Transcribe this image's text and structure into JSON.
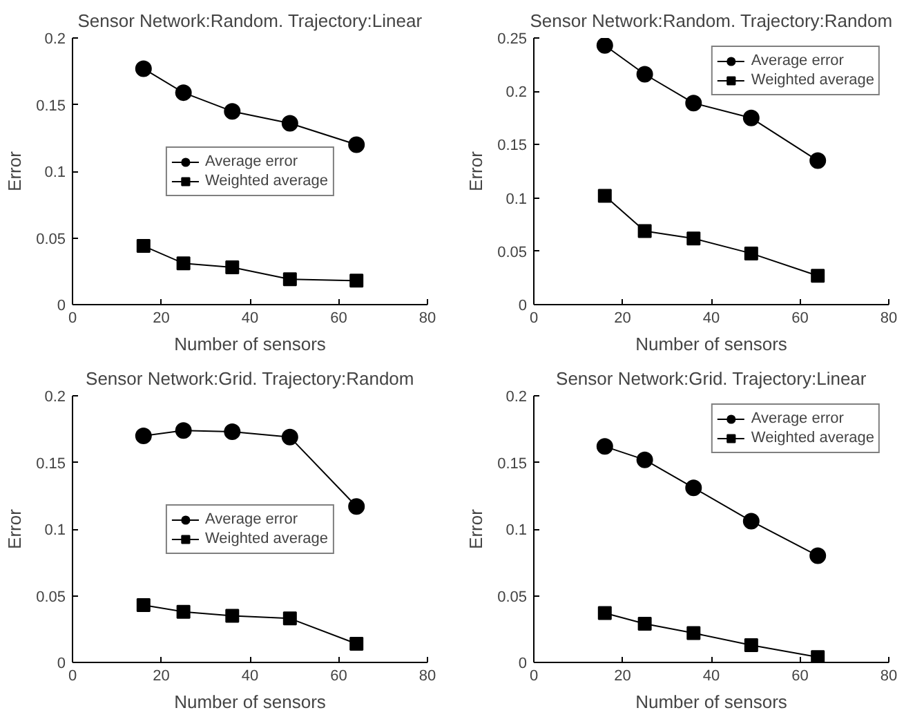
{
  "chart_data": [
    {
      "type": "line",
      "title": "Sensor Network:Random. Trajectory:Linear",
      "xlabel": "Number of sensors",
      "ylabel": "Error",
      "x": [
        16,
        25,
        36,
        49,
        64
      ],
      "xlim": [
        0,
        80
      ],
      "xticks": [
        0,
        20,
        40,
        60,
        80
      ],
      "ylim": [
        0,
        0.2
      ],
      "yticks": [
        0,
        0.05,
        0.1,
        0.15,
        0.2
      ],
      "legend": "center",
      "grid": false,
      "series": [
        {
          "name": "Average error",
          "color": "#000000",
          "marker": "circle",
          "values": [
            0.177,
            0.159,
            0.145,
            0.136,
            0.12
          ]
        },
        {
          "name": "Weighted average",
          "color": "#000000",
          "marker": "square",
          "values": [
            0.044,
            0.031,
            0.028,
            0.019,
            0.018
          ]
        }
      ]
    },
    {
      "type": "line",
      "title": "Sensor Network:Random. Trajectory:Random",
      "xlabel": "Number of sensors",
      "ylabel": "Error",
      "x": [
        16,
        25,
        36,
        49,
        64
      ],
      "xlim": [
        0,
        80
      ],
      "xticks": [
        0,
        20,
        40,
        60,
        80
      ],
      "ylim": [
        0,
        0.25
      ],
      "yticks": [
        0,
        0.05,
        0.1,
        0.15,
        0.2,
        0.25
      ],
      "legend": "top right",
      "grid": false,
      "series": [
        {
          "name": "Average error",
          "color": "#000000",
          "marker": "circle",
          "values": [
            0.243,
            0.216,
            0.189,
            0.175,
            0.135
          ]
        },
        {
          "name": "Weighted average",
          "color": "#000000",
          "marker": "square",
          "values": [
            0.102,
            0.069,
            0.062,
            0.048,
            0.027
          ]
        }
      ]
    },
    {
      "type": "line",
      "title": "Sensor Network:Grid. Trajectory:Random",
      "xlabel": "Number of sensors",
      "ylabel": "Error",
      "x": [
        16,
        25,
        36,
        49,
        64
      ],
      "xlim": [
        0,
        80
      ],
      "xticks": [
        0,
        20,
        40,
        60,
        80
      ],
      "ylim": [
        0,
        0.2
      ],
      "yticks": [
        0,
        0.05,
        0.1,
        0.15,
        0.2
      ],
      "legend": "center",
      "grid": false,
      "series": [
        {
          "name": "Average error",
          "color": "#000000",
          "marker": "circle",
          "values": [
            0.17,
            0.174,
            0.173,
            0.169,
            0.117
          ]
        },
        {
          "name": "Weighted average",
          "color": "#000000",
          "marker": "square",
          "values": [
            0.043,
            0.038,
            0.035,
            0.033,
            0.014
          ]
        }
      ]
    },
    {
      "type": "line",
      "title": "Sensor Network:Grid. Trajectory:Linear",
      "xlabel": "Number of sensors",
      "ylabel": "Error",
      "x": [
        16,
        25,
        36,
        49,
        64
      ],
      "xlim": [
        0,
        80
      ],
      "xticks": [
        0,
        20,
        40,
        60,
        80
      ],
      "ylim": [
        0,
        0.2
      ],
      "yticks": [
        0,
        0.05,
        0.1,
        0.15,
        0.2
      ],
      "legend": "top right",
      "grid": false,
      "series": [
        {
          "name": "Average error",
          "color": "#000000",
          "marker": "circle",
          "values": [
            0.162,
            0.152,
            0.131,
            0.106,
            0.08
          ]
        },
        {
          "name": "Weighted average",
          "color": "#000000",
          "marker": "square",
          "values": [
            0.037,
            0.029,
            0.022,
            0.013,
            0.004
          ]
        }
      ]
    }
  ]
}
